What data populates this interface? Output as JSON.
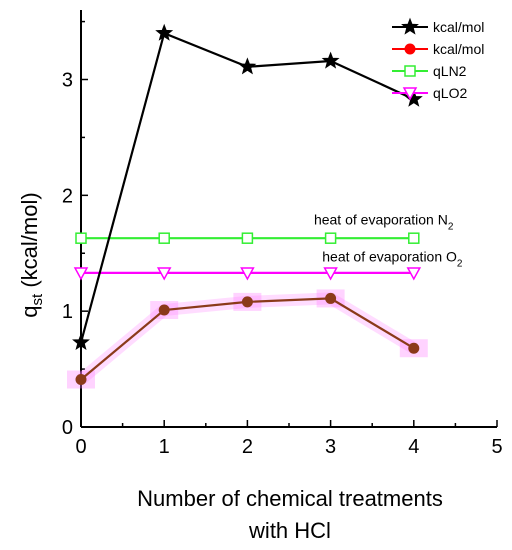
{
  "chart_data": {
    "type": "line",
    "title": "",
    "xlabel_line1": "Number of chemical treatments",
    "xlabel_line2": "with HCl",
    "ylabel": "q",
    "ylabel_sub": "st",
    "ylabel_unit": " (kcal/mol)",
    "xlim": [
      0,
      5
    ],
    "ylim": [
      0,
      3.6
    ],
    "xticks": [
      "0",
      "1",
      "2",
      "3",
      "4",
      "5"
    ],
    "yticks": [
      "0",
      "1",
      "2",
      "3"
    ],
    "grid": false,
    "legend_position": "top-right",
    "series": [
      {
        "name": "kcal/mol",
        "color": "#000000",
        "marker": "star",
        "x": [
          0,
          1,
          2,
          3,
          4
        ],
        "y": [
          0.73,
          3.4,
          3.11,
          3.16,
          2.83
        ]
      },
      {
        "name": "kcal/mol",
        "color": "#8B3A1A",
        "legend_color": "#ff0000",
        "marker": "circle",
        "glow": "#ff80ff",
        "x": [
          0,
          1,
          2,
          3,
          4
        ],
        "y": [
          0.41,
          1.01,
          1.08,
          1.11,
          0.68
        ]
      },
      {
        "name": "qLN2",
        "color": "#33ee33",
        "marker": "square-open",
        "x": [
          0,
          1,
          2,
          3,
          4
        ],
        "y": [
          1.63,
          1.63,
          1.63,
          1.63,
          1.63
        ]
      },
      {
        "name": "qLO2",
        "color": "#ff00ff",
        "marker": "triangle-down-open",
        "x": [
          0,
          1,
          2,
          3,
          4
        ],
        "y": [
          1.33,
          1.33,
          1.33,
          1.33,
          1.33
        ]
      }
    ],
    "annotations": [
      {
        "text": "heat of evaporation N",
        "sub": "2",
        "x": 2.8,
        "y": 1.75
      },
      {
        "text": "heat of evaporation O",
        "sub": "2",
        "x": 2.9,
        "y": 1.43
      }
    ]
  }
}
